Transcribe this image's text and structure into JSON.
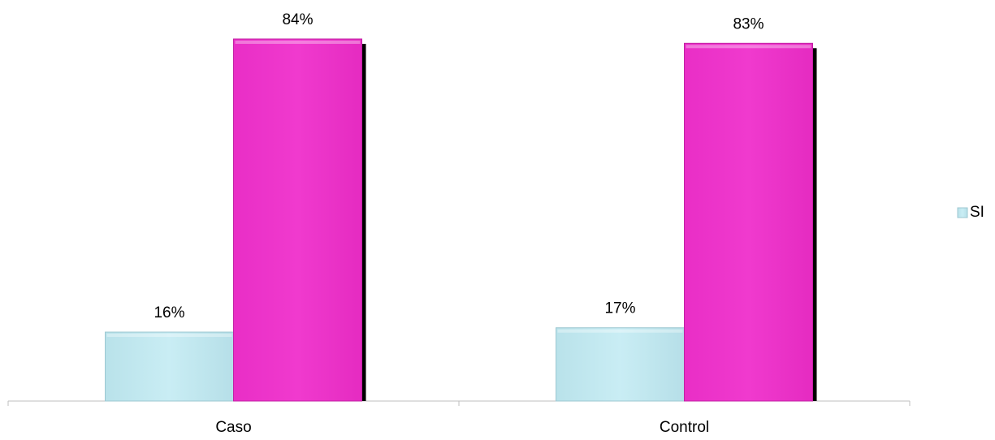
{
  "chart_data": {
    "type": "bar",
    "title": "",
    "xlabel": "",
    "ylabel": "",
    "categories": [
      "Caso",
      "Control"
    ],
    "series": [
      {
        "name": "SI",
        "values": [
          16,
          17
        ],
        "labels": [
          "16%",
          "17%"
        ],
        "color": "#c5e9f0",
        "in_legend": true
      },
      {
        "values": [
          84,
          83
        ],
        "labels": [
          "84%",
          "83%"
        ],
        "color": "#ef36cd",
        "in_legend": false
      }
    ],
    "ylim": [
      0,
      85
    ],
    "grid": false,
    "legend_position": "right",
    "value_unit": "%"
  }
}
